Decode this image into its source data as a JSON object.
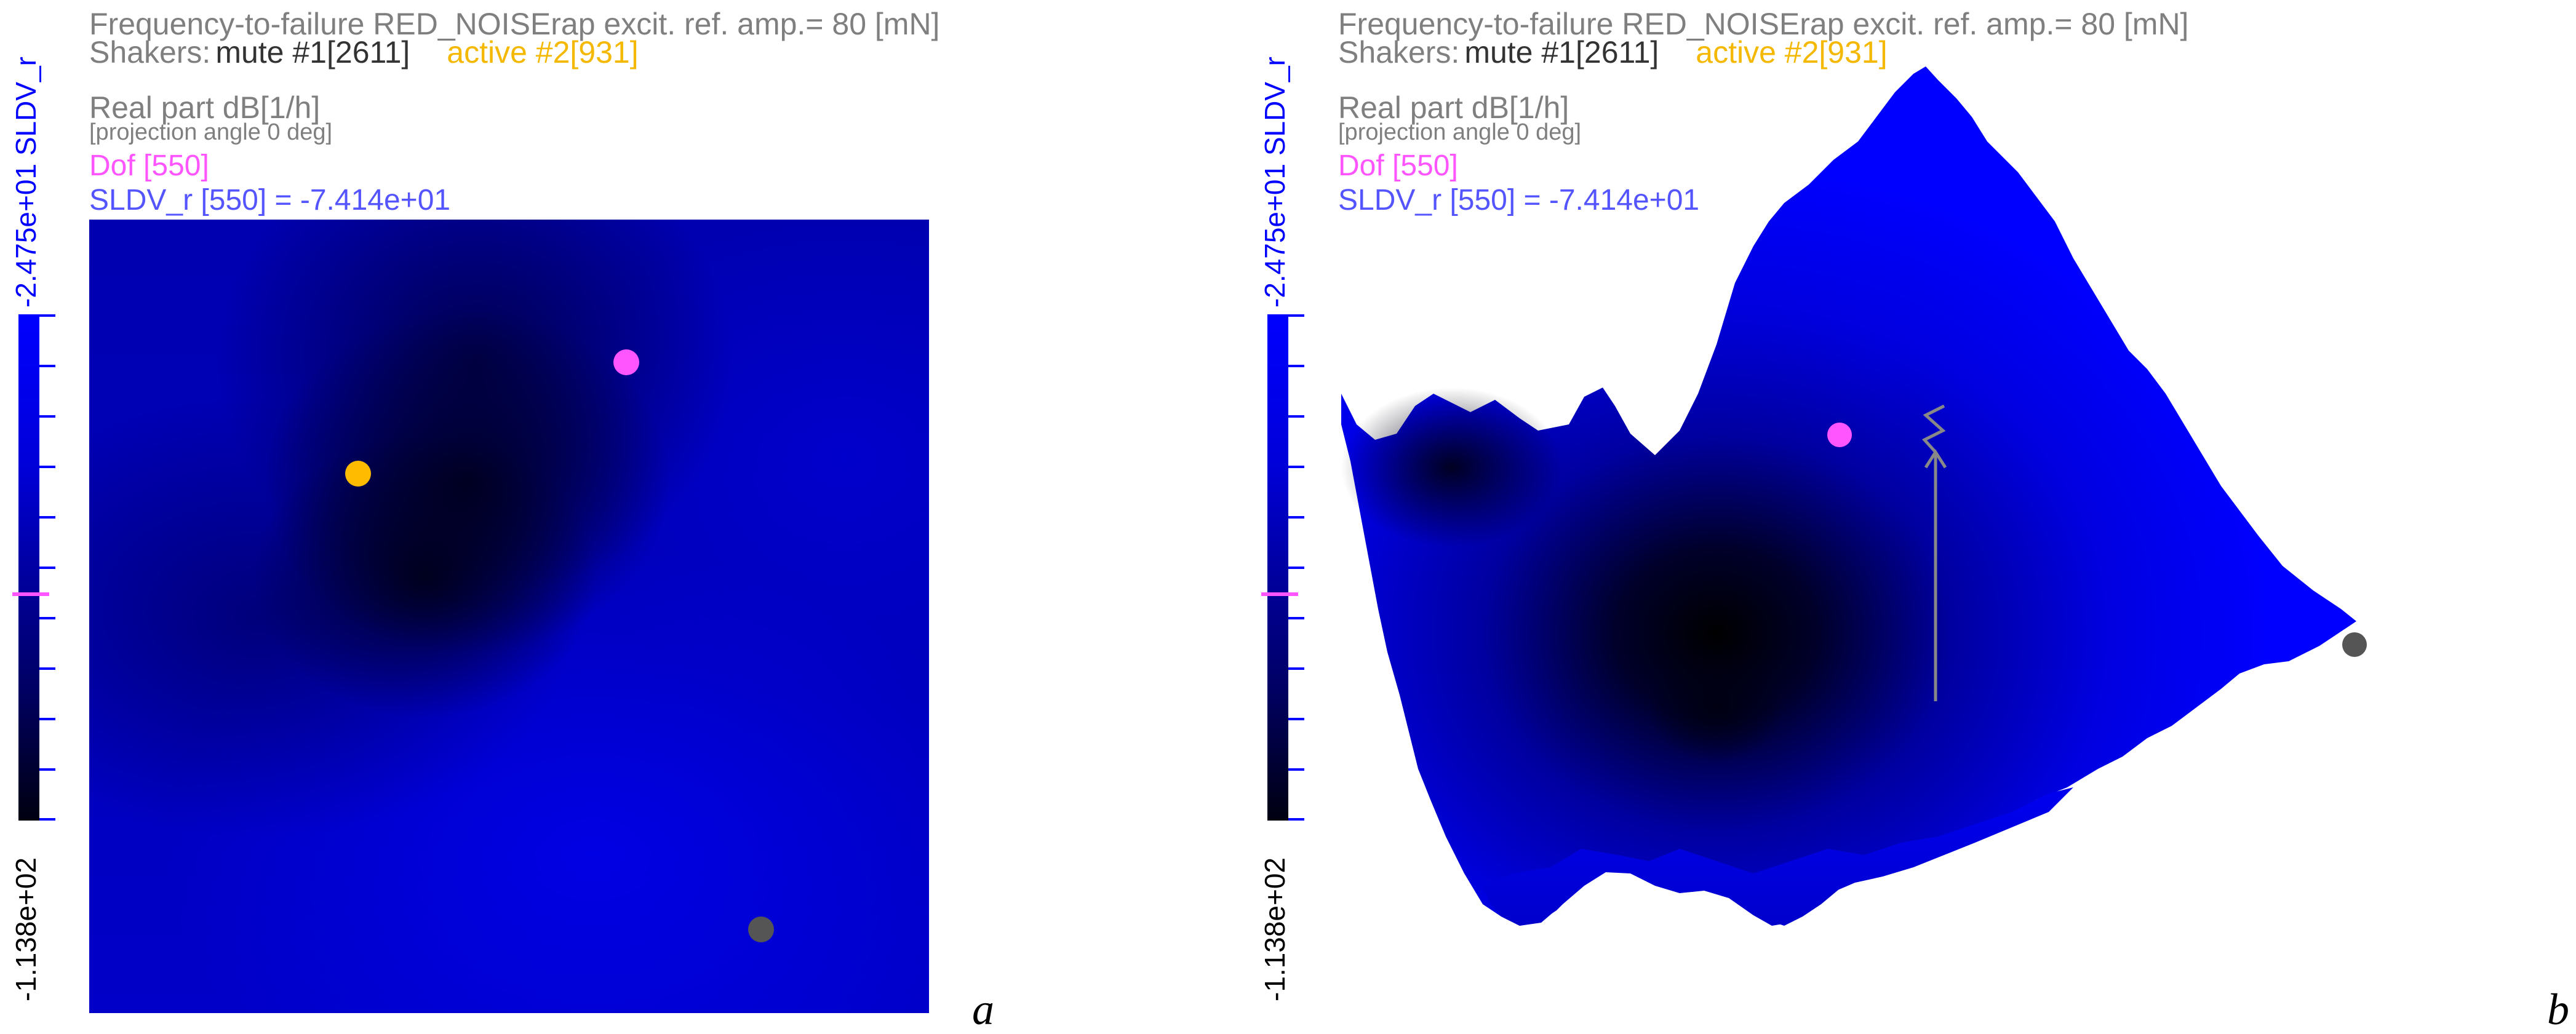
{
  "colorbar": {
    "top_label": "-2.475e+01 SLDV_r",
    "bottom_label": "-1.138e+02"
  },
  "header": {
    "title": "Frequency-to-failure RED_NOISErap excit. ref. amp.= 80 [mN]",
    "shakers_label": "Shakers:",
    "mute_label": "mute #1[2611]",
    "active_label": "active #2[931]"
  },
  "info": {
    "real_part": "Real part dB[1/h]",
    "projection": "[projection angle 0 deg]",
    "dof": "Dof [550]",
    "value": "SLDV_r [550] = -7.414e+01"
  },
  "panels": {
    "a_letter": "a",
    "b_letter": "b"
  },
  "colors": {
    "field_blue": "#0000ff",
    "dof_marker": "#ff55ff",
    "active_shaker": "#ffbb00",
    "mute_shaker": "#555555",
    "value_text": "#5555ff"
  }
}
